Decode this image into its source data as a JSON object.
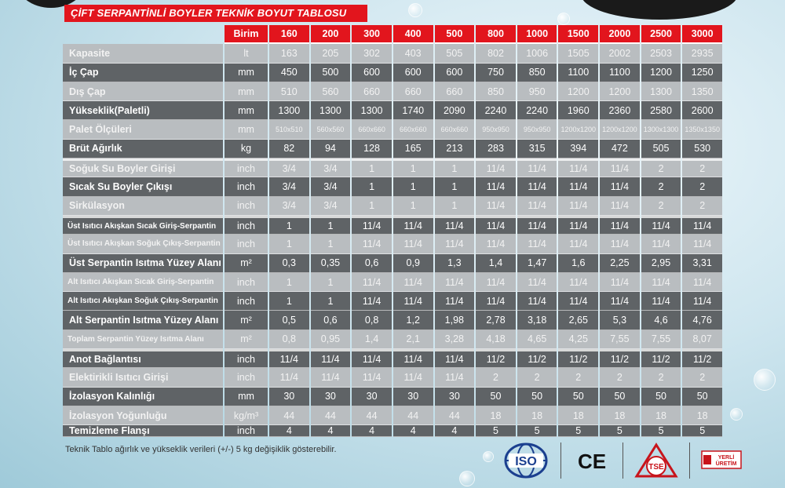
{
  "title": "ÇİFT SERPANTİNLİ BOYLER TEKNİK BOYUT TABLOSU",
  "header": {
    "unit": "Birim",
    "capacities": [
      "160",
      "200",
      "300",
      "400",
      "500",
      "800",
      "1000",
      "1500",
      "2000",
      "2500",
      "3000"
    ]
  },
  "rows": [
    {
      "label": "Kapasite",
      "unit": "lt",
      "values": [
        "163",
        "205",
        "302",
        "403",
        "505",
        "802",
        "1006",
        "1505",
        "2002",
        "2503",
        "2935"
      ],
      "tone": "light"
    },
    {
      "label": "İç Çap",
      "unit": "mm",
      "values": [
        "450",
        "500",
        "600",
        "600",
        "600",
        "750",
        "850",
        "1100",
        "1100",
        "1200",
        "1250"
      ],
      "tone": "dark"
    },
    {
      "label": "Dış Çap",
      "unit": "mm",
      "values": [
        "510",
        "560",
        "660",
        "660",
        "660",
        "850",
        "950",
        "1200",
        "1200",
        "1300",
        "1350"
      ],
      "tone": "light"
    },
    {
      "label": "Yükseklik(Paletli)",
      "unit": "mm",
      "values": [
        "1300",
        "1300",
        "1300",
        "1740",
        "2090",
        "2240",
        "2240",
        "1960",
        "2360",
        "2580",
        "2600"
      ],
      "tone": "dark"
    },
    {
      "label": "Palet Ölçüleri",
      "unit": "mm",
      "values": [
        "510x510",
        "560x560",
        "660x660",
        "660x660",
        "660x660",
        "950x950",
        "950x950",
        "1200x1200",
        "1200x1200",
        "1300x1300",
        "1350x1350"
      ],
      "tone": "light",
      "small": true
    },
    {
      "label": "Brüt Ağırlık",
      "unit": "kg",
      "values": [
        "82",
        "94",
        "128",
        "165",
        "213",
        "283",
        "315",
        "394",
        "472",
        "505",
        "530"
      ],
      "tone": "dark"
    },
    {
      "label": "Soğuk Su Boyler Girişi",
      "unit": "inch",
      "values": [
        "3/4",
        "3/4",
        "1",
        "1",
        "1",
        "11/4",
        "11/4",
        "11/4",
        "11/4",
        "2",
        "2"
      ],
      "tone": "light",
      "gap": true
    },
    {
      "label": "Sıcak Su Boyler Çıkışı",
      "unit": "inch",
      "values": [
        "3/4",
        "3/4",
        "1",
        "1",
        "1",
        "11/4",
        "11/4",
        "11/4",
        "11/4",
        "2",
        "2"
      ],
      "tone": "dark"
    },
    {
      "label": "Sirkülasyon",
      "unit": "inch",
      "values": [
        "3/4",
        "3/4",
        "1",
        "1",
        "1",
        "11/4",
        "11/4",
        "11/4",
        "11/4",
        "2",
        "2"
      ],
      "tone": "light"
    },
    {
      "label": "Üst Isıtıcı Akışkan Sıcak Giriş-Serpantin",
      "unit": "inch",
      "values": [
        "1",
        "1",
        "11/4",
        "11/4",
        "11/4",
        "11/4",
        "11/4",
        "11/4",
        "11/4",
        "11/4",
        "11/4"
      ],
      "tone": "dark",
      "tiny": true,
      "gap": true
    },
    {
      "label": "Üst Isıtıcı Akışkan Soğuk Çıkış-Serpantin",
      "unit": "inch",
      "values": [
        "1",
        "1",
        "11/4",
        "11/4",
        "11/4",
        "11/4",
        "11/4",
        "11/4",
        "11/4",
        "11/4",
        "11/4"
      ],
      "tone": "light",
      "tiny": true
    },
    {
      "label": "Üst  Serpantin Isıtma Yüzey Alanı",
      "unit": "m²",
      "values": [
        "0,3",
        "0,35",
        "0,6",
        "0,9",
        "1,3",
        "1,4",
        "1,47",
        "1,6",
        "2,25",
        "2,95",
        "3,31"
      ],
      "tone": "dark"
    },
    {
      "label": "Alt Isıtıcı Akışkan Sıcak Giriş-Serpantin",
      "unit": "inch",
      "values": [
        "1",
        "1",
        "11/4",
        "11/4",
        "11/4",
        "11/4",
        "11/4",
        "11/4",
        "11/4",
        "11/4",
        "11/4"
      ],
      "tone": "light",
      "tiny": true
    },
    {
      "label": "Alt Isıtıcı Akışkan Soğuk Çıkış-Serpantin",
      "unit": "inch",
      "values": [
        "1",
        "1",
        "11/4",
        "11/4",
        "11/4",
        "11/4",
        "11/4",
        "11/4",
        "11/4",
        "11/4",
        "11/4"
      ],
      "tone": "dark",
      "tiny": true
    },
    {
      "label": "Alt Serpantin Isıtma Yüzey Alanı",
      "unit": "m²",
      "values": [
        "0,5",
        "0,6",
        "0,8",
        "1,2",
        "1,98",
        "2,78",
        "3,18",
        "2,65",
        "5,3",
        "4,6",
        "4,76"
      ],
      "tone": "dark"
    },
    {
      "label": "Toplam Serpantin Yüzey Isıtma Alanı",
      "unit": "m²",
      "values": [
        "0,8",
        "0,95",
        "1,4",
        "2,1",
        "3,28",
        "4,18",
        "4,65",
        "4,25",
        "7,55",
        "7,55",
        "8,07"
      ],
      "tone": "light",
      "tiny": true
    },
    {
      "label": "Anot Bağlantısı",
      "unit": "inch",
      "values": [
        "11/4",
        "11/4",
        "11/4",
        "11/4",
        "11/4",
        "11/2",
        "11/2",
        "11/2",
        "11/2",
        "11/2",
        "11/2"
      ],
      "tone": "dark",
      "gap": true
    },
    {
      "label": "Elektirikli Isıtıcı Girişi",
      "unit": "inch",
      "values": [
        "11/4",
        "11/4",
        "11/4",
        "11/4",
        "11/4",
        "2",
        "2",
        "2",
        "2",
        "2",
        "2"
      ],
      "tone": "light"
    },
    {
      "label": "İzolasyon Kalınlığı",
      "unit": "mm",
      "values": [
        "30",
        "30",
        "30",
        "30",
        "30",
        "50",
        "50",
        "50",
        "50",
        "50",
        "50"
      ],
      "tone": "dark"
    },
    {
      "label": "İzolasyon Yoğunluğu",
      "unit": "kg/m³",
      "values": [
        "44",
        "44",
        "44",
        "44",
        "44",
        "18",
        "18",
        "18",
        "18",
        "18",
        "18"
      ],
      "tone": "light"
    },
    {
      "label": "Temizleme Flanşı",
      "unit": "inch",
      "values": [
        "4",
        "4",
        "4",
        "4",
        "4",
        "5",
        "5",
        "5",
        "5",
        "5",
        "5"
      ],
      "tone": "dark"
    }
  ],
  "footnote": "Teknik Tablo ağırlık ve yükseklik verileri (+/-) 5 kg değişiklik gösterebilir.",
  "logos": {
    "iso": "ISO",
    "ce": "CE",
    "tse": "TSE",
    "yerli_line1": "YERLİ",
    "yerli_line2": "ÜRETİM"
  },
  "colors": {
    "accent": "#e2151d",
    "dark_row": "#5f6366",
    "light_row": "#b9bdc0",
    "iso_blue": "#1b3f8f"
  }
}
